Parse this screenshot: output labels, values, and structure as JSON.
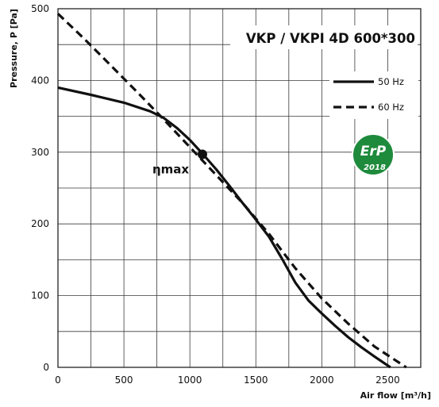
{
  "chart_data": {
    "type": "line",
    "title": "VKP / VKPI 4D 600*300",
    "xlabel": "Air flow [m³/h]",
    "ylabel": "Pressure, P [Pa]",
    "xlim": [
      0,
      2750
    ],
    "ylim": [
      0,
      500
    ],
    "xticks": [
      0,
      500,
      1000,
      1500,
      2000,
      2500
    ],
    "yticks": [
      0,
      100,
      200,
      300,
      400,
      500
    ],
    "grid": true,
    "legend_position": "top-right",
    "series": [
      {
        "name": "50 Hz",
        "style": "solid",
        "color": "#111111",
        "x": [
          0,
          250,
          500,
          700,
          800,
          900,
          1000,
          1100,
          1200,
          1300,
          1400,
          1500,
          1600,
          1700,
          1800,
          1900,
          2000,
          2100,
          2200,
          2300,
          2400,
          2520
        ],
        "y": [
          390,
          380,
          369,
          357,
          348,
          334,
          317,
          297,
          276,
          253,
          229,
          206,
          182,
          151,
          118,
          93,
          75,
          58,
          42,
          28,
          15,
          0
        ]
      },
      {
        "name": "60 Hz",
        "style": "dashed",
        "color": "#111111",
        "x": [
          0,
          200,
          400,
          600,
          800,
          1000,
          1200,
          1400,
          1600,
          1800,
          2000,
          2200,
          2400,
          2640
        ],
        "y": [
          493,
          458,
          421,
          384,
          346,
          307,
          268,
          229,
          186,
          138,
          96,
          61,
          29,
          0
        ]
      }
    ],
    "annotations": [
      {
        "text": "ηmax",
        "x": 1095,
        "y": 297
      }
    ]
  },
  "badge": {
    "top_text": "ErP",
    "bottom_text": "2018",
    "color": "#1e8a3c"
  }
}
